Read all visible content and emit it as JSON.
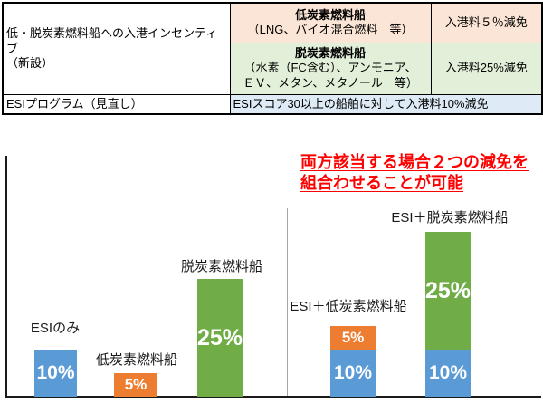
{
  "table": {
    "incentive_label_line1": "低・脱炭素燃料船への入港インセンティブ",
    "incentive_label_line2": "（新設）",
    "low_carbon": {
      "title": "低炭素燃料船",
      "examples": "（LNG、バイオ混合燃料　等）",
      "discount": "入港料５％減免"
    },
    "decarbonized": {
      "title": "脱炭素燃料船",
      "examples_line1": "（水素（FC含む）、アンモニア、",
      "examples_line2": "ＥＶ、メタン、メタノール　等）",
      "discount": "入港料25%減免"
    },
    "esi_program": {
      "label": "ESIプログラム（見直し）",
      "detail": "ESIスコア30以上の船舶に対して入港料10%減免"
    }
  },
  "annotation": {
    "line1": "両方該当する場合２つの減免を",
    "line2": "組合わせることが可能",
    "color": "#FF0000"
  },
  "chart_data": {
    "type": "bar",
    "subtype": "stacked",
    "unit": "%",
    "ylim": [
      0,
      35
    ],
    "grid": false,
    "legend": "none",
    "categories": [
      "ESIのみ",
      "低炭素燃料船",
      "脱炭素燃料船",
      "ESI＋低炭素燃料船",
      "ESI＋脱炭素燃料船"
    ],
    "groups": [
      {
        "label": "ESIのみ",
        "segments": [
          {
            "name": "ESI",
            "value": 10,
            "label": "10%",
            "color": "#5B9BD5"
          }
        ]
      },
      {
        "label": "低炭素燃料船",
        "segments": [
          {
            "name": "低炭素燃料船",
            "value": 5,
            "label": "5%",
            "color": "#ED7D31"
          }
        ]
      },
      {
        "label": "脱炭素燃料船",
        "segments": [
          {
            "name": "脱炭素燃料船",
            "value": 25,
            "label": "25%",
            "color": "#70AD47"
          }
        ]
      },
      {
        "label": "ESI＋低炭素燃料船",
        "segments": [
          {
            "name": "ESI",
            "value": 10,
            "label": "10%",
            "color": "#5B9BD5"
          },
          {
            "name": "低炭素燃料船",
            "value": 5,
            "label": "5%",
            "color": "#ED7D31"
          }
        ]
      },
      {
        "label": "ESI＋脱炭素燃料船",
        "segments": [
          {
            "name": "ESI",
            "value": 10,
            "label": "10%",
            "color": "#5B9BD5"
          },
          {
            "name": "脱炭素燃料船",
            "value": 25,
            "label": "25%",
            "color": "#70AD47"
          }
        ]
      }
    ]
  },
  "colors": {
    "bar_blue": "#5B9BD5",
    "bar_orange": "#ED7D31",
    "bar_green": "#70AD47",
    "table_fill_peach": "#FBE5D6",
    "table_fill_green": "#E2EFD9",
    "table_fill_blue": "#DEEBF6",
    "annotation_red": "#FF0000",
    "axis_black": "#1a1a1a",
    "divider_gray": "#A6A6A6"
  }
}
